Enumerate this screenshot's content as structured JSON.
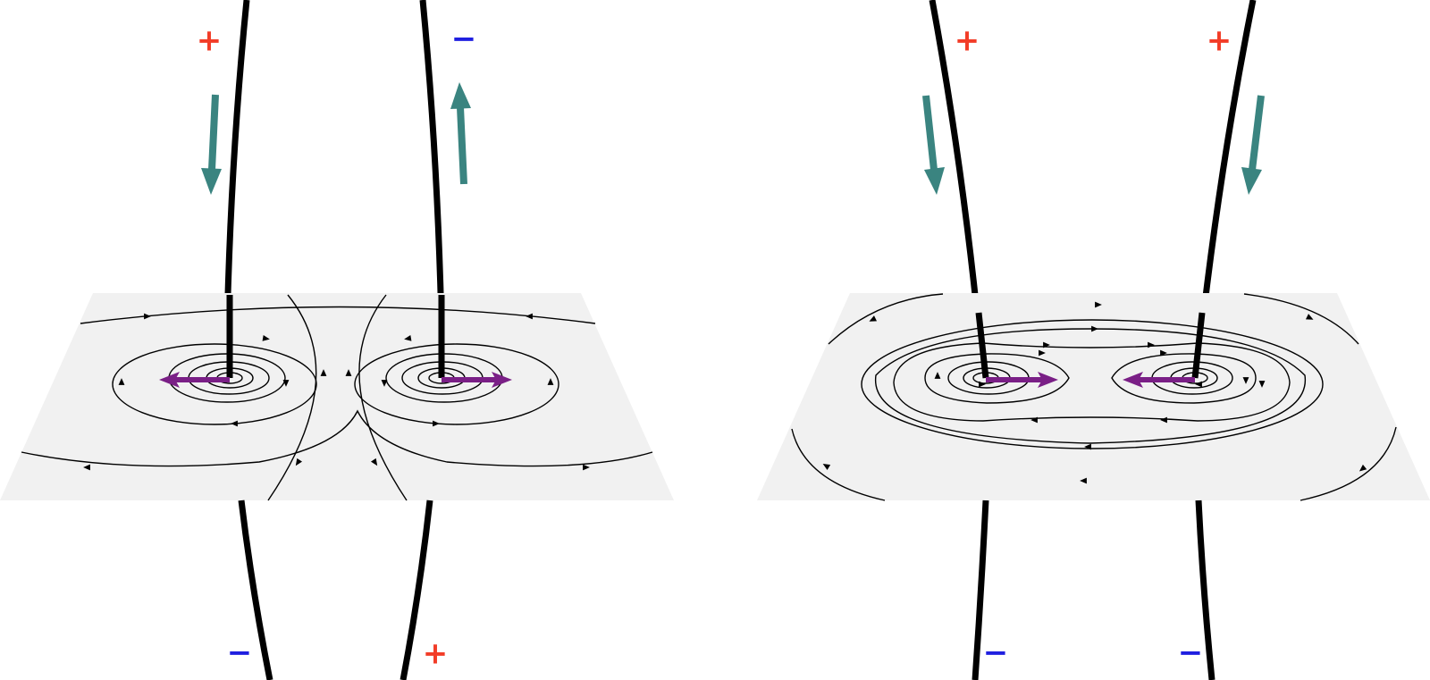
{
  "colors": {
    "background": "#ffffff",
    "plane": "#f1f1f1",
    "wire": "#000000",
    "field_line": "#000000",
    "current_arrow": "#3a8480",
    "force_arrow": "#7a1f86",
    "plus_sign": "#f23c27",
    "minus_sign": "#1f1fe0"
  },
  "panels": [
    {
      "name": "antiparallel-currents",
      "signs": {
        "top_left": "+",
        "top_right": "−",
        "bottom_left": "−",
        "bottom_right": "+"
      },
      "current_directions": [
        "down",
        "up"
      ],
      "force": "repulsive"
    },
    {
      "name": "parallel-currents",
      "signs": {
        "top_left": "+",
        "top_right": "+",
        "bottom_left": "−",
        "bottom_right": "−"
      },
      "current_directions": [
        "down",
        "down"
      ],
      "force": "attractive"
    }
  ]
}
